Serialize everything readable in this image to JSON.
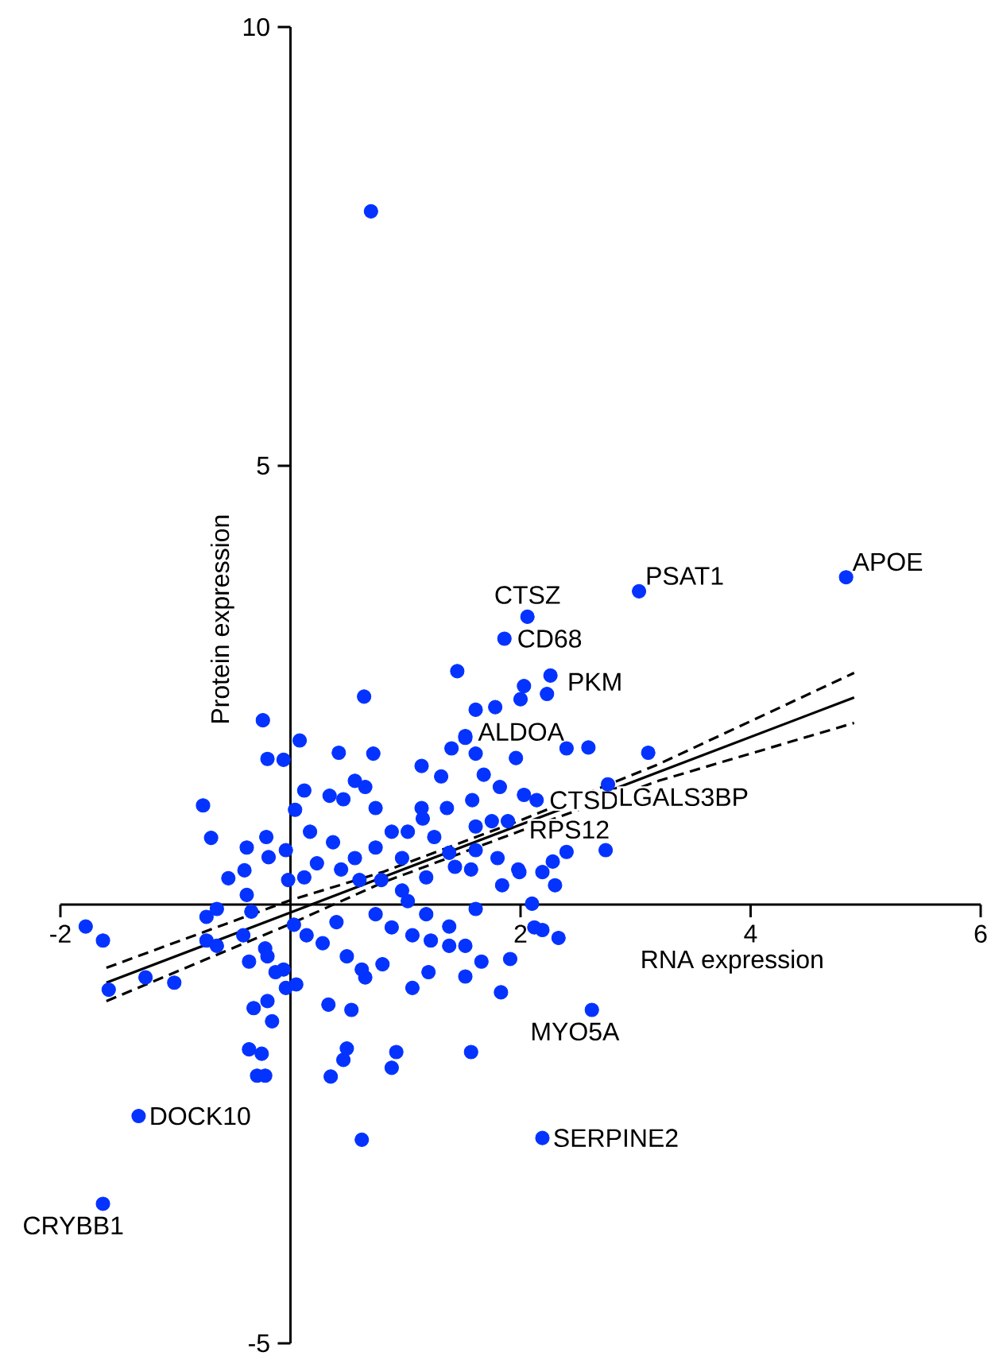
{
  "chart_data": {
    "type": "scatter",
    "xlabel": "RNA expression",
    "ylabel": "Protein expression",
    "xlim": [
      -2,
      6
    ],
    "ylim": [
      -5,
      10
    ],
    "xticks": [
      -2,
      2,
      4,
      6
    ],
    "yticks": [
      -5,
      5,
      10
    ],
    "series": [
      {
        "marker": "circle",
        "color": "#0433ff",
        "x": [
          4.83,
          3.03,
          2.06,
          1.86,
          1.52,
          2.14,
          2.76,
          1.89,
          2.62,
          2.19,
          -1.32,
          -1.63,
          0.7,
          -0.24,
          0.08,
          -0.2,
          -0.06,
          0.64,
          0.42,
          0.72,
          -0.76,
          -0.69,
          0.12,
          0.34,
          0.56,
          0.65,
          1.14,
          1.31,
          1.4,
          1.52,
          1.61,
          1.45,
          1.61,
          1.78,
          1.58,
          1.68,
          1.82,
          1.96,
          0.04,
          0.17,
          0.46,
          0.74,
          1.14,
          1.36,
          -0.21,
          -0.38,
          -0.19,
          -0.54,
          -0.4,
          -0.38,
          -0.04,
          -0.02,
          0.12,
          0.23,
          0.37,
          0.44,
          0.56,
          0.6,
          0.74,
          0.88,
          0.97,
          1.02,
          1.15,
          1.25,
          1.38,
          1.18,
          1.43,
          1.57,
          1.61,
          1.8,
          1.61,
          1.75,
          1.84,
          1.98,
          0.79,
          0.97,
          2.03,
          2.0,
          2.23,
          2.26,
          2.4,
          2.59,
          3.11,
          2.74,
          2.4,
          2.28,
          2.3,
          2.03,
          1.99,
          2.19,
          2.1,
          -1.78,
          -1.63,
          -1.58,
          -1.26,
          -1.01,
          -0.73,
          -0.64,
          -0.73,
          -0.64,
          -0.41,
          -0.34,
          -0.36,
          -0.22,
          -0.2,
          -0.13,
          -0.06,
          -0.04,
          0.05,
          -0.32,
          -0.2,
          -0.16,
          -0.36,
          -0.25,
          -0.29,
          -0.22,
          0.33,
          0.53,
          0.49,
          0.46,
          0.35,
          0.92,
          0.88,
          1.57,
          0.62,
          0.03,
          0.14,
          0.28,
          0.4,
          0.49,
          0.65,
          0.62,
          0.8,
          0.88,
          1.06,
          1.22,
          1.2,
          1.06,
          1.38,
          1.52,
          1.38,
          1.66,
          1.52,
          1.83,
          1.91,
          2.12,
          1.18,
          0.74,
          1.02,
          1.61,
          2.19,
          2.33
        ],
        "values": [
          3.73,
          3.57,
          3.28,
          3.03,
          1.92,
          1.19,
          1.37,
          0.95,
          -1.2,
          -2.66,
          -2.41,
          -3.41,
          7.9,
          2.1,
          1.87,
          1.66,
          1.65,
          2.37,
          1.73,
          1.72,
          1.13,
          0.76,
          1.3,
          1.24,
          1.41,
          1.34,
          1.58,
          1.46,
          1.78,
          1.9,
          1.72,
          2.66,
          2.22,
          2.25,
          1.19,
          1.48,
          1.34,
          1.67,
          1.08,
          0.83,
          1.2,
          1.1,
          1.1,
          1.1,
          0.77,
          0.65,
          0.54,
          0.3,
          0.39,
          0.11,
          0.62,
          0.28,
          0.31,
          0.47,
          0.71,
          0.4,
          0.53,
          0.28,
          0.65,
          0.83,
          0.53,
          0.83,
          0.98,
          0.77,
          0.59,
          0.31,
          0.43,
          0.4,
          0.62,
          0.53,
          0.89,
          0.95,
          0.22,
          0.4,
          0.28,
          0.16,
          2.49,
          2.34,
          2.4,
          2.61,
          1.78,
          1.79,
          1.73,
          0.62,
          0.6,
          0.49,
          0.22,
          1.25,
          0.37,
          0.37,
          0.01,
          -0.25,
          -0.41,
          -0.97,
          -0.83,
          -0.89,
          -0.14,
          -0.05,
          -0.41,
          -0.47,
          -0.35,
          -0.08,
          -0.65,
          -0.5,
          -0.59,
          -0.77,
          -0.74,
          -0.95,
          -0.91,
          -1.18,
          -1.1,
          -1.33,
          -1.65,
          -1.7,
          -1.95,
          -1.95,
          -1.14,
          -1.2,
          -1.64,
          -1.77,
          -1.96,
          -1.68,
          -1.86,
          -1.68,
          -2.68,
          -0.23,
          -0.35,
          -0.44,
          -0.2,
          -0.59,
          -0.83,
          -0.74,
          -0.68,
          -0.26,
          -0.35,
          -0.41,
          -0.77,
          -0.95,
          -0.47,
          -0.47,
          -0.25,
          -0.65,
          -0.82,
          -1.0,
          -0.62,
          -0.26,
          -0.11,
          -0.11,
          0.04,
          -0.05,
          -0.29,
          -0.38
        ]
      },
      {
        "type": "line",
        "marker": "none",
        "color": "#000000",
        "line_style": "solid",
        "x": [
          -1.6,
          0,
          0.8,
          2,
          3.2,
          4.9
        ],
        "values": [
          -0.89,
          -0.09,
          0.31,
          0.91,
          1.51,
          2.36
        ]
      },
      {
        "type": "line",
        "marker": "none",
        "color": "#000000",
        "line_style": "dashed",
        "x": [
          -1.6,
          0,
          0.8,
          2,
          3.2,
          4.9
        ],
        "values": [
          -0.72,
          0.05,
          0.37,
          0.96,
          1.6,
          2.64
        ]
      },
      {
        "type": "line",
        "marker": "none",
        "color": "#000000",
        "line_style": "dashed",
        "x": [
          -1.6,
          0,
          0.8,
          2,
          3.2,
          4.9
        ],
        "values": [
          -1.1,
          -0.22,
          0.25,
          0.84,
          1.41,
          2.07
        ]
      }
    ],
    "annotations": [
      {
        "text": "APOE",
        "x": 4.83,
        "y": 3.73
      },
      {
        "text": "PSAT1",
        "x": 3.03,
        "y": 3.57
      },
      {
        "text": "CTSZ",
        "x": 2.06,
        "y": 3.28
      },
      {
        "text": "CD68",
        "x": 1.86,
        "y": 3.03
      },
      {
        "text": "PKM",
        "x": 2.26,
        "y": 2.61
      },
      {
        "text": "ALDOA",
        "x": 1.52,
        "y": 1.92
      },
      {
        "text": "CTSD",
        "x": 2.14,
        "y": 1.19
      },
      {
        "text": "LGALS3BP",
        "x": 2.76,
        "y": 1.37
      },
      {
        "text": "RPS12",
        "x": 1.89,
        "y": 0.95
      },
      {
        "text": "MYO5A",
        "x": 2.62,
        "y": -1.2
      },
      {
        "text": "SERPINE2",
        "x": 2.19,
        "y": -2.66
      },
      {
        "text": "DOCK10",
        "x": -1.32,
        "y": -2.41
      },
      {
        "text": "CRYBB1",
        "x": -1.63,
        "y": -3.41
      }
    ]
  }
}
